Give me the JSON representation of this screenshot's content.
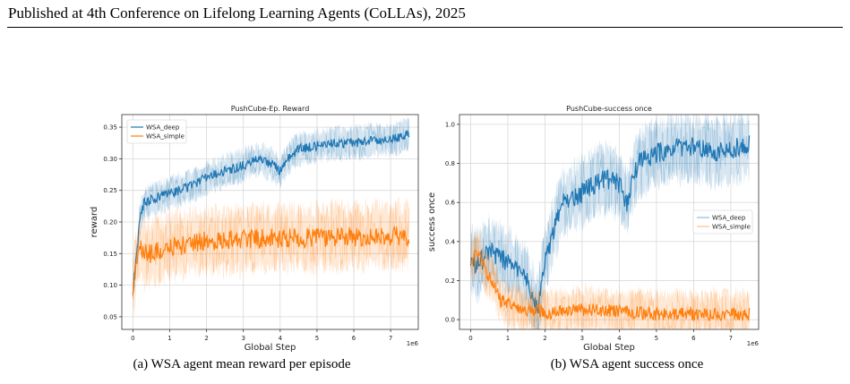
{
  "page": {
    "header": "Published at 4th Conference on Lifelong Learning Agents (CoLLAs), 2025",
    "captions": [
      "(a) WSA agent mean reward per episode",
      "(b) WSA agent success once"
    ]
  },
  "colors": {
    "WSA_deep": "#1f77b4",
    "WSA_simple": "#ff7f0e"
  },
  "chart_data": [
    {
      "type": "line",
      "title": "PushCube-Ep. Reward",
      "xlabel": "Global Step",
      "ylabel": "reward",
      "x_multiplier": "1e6",
      "xlim": [
        -0.3,
        7.75
      ],
      "ylim": [
        0.03,
        0.37
      ],
      "xticks": [
        0,
        1,
        2,
        3,
        4,
        5,
        6,
        7
      ],
      "yticks": [
        0.05,
        0.1,
        0.15,
        0.2,
        0.25,
        0.3,
        0.35
      ],
      "ytick_labels": [
        "0.05",
        "0.10",
        "0.15",
        "0.20",
        "0.25",
        "0.30",
        "0.35"
      ],
      "grid": true,
      "legend_position": "top-left",
      "series": [
        {
          "name": "WSA_deep",
          "x": [
            0.0,
            0.1,
            0.2,
            0.3,
            0.5,
            0.7,
            1.0,
            1.5,
            2.0,
            2.5,
            3.0,
            3.4,
            3.8,
            4.0,
            4.2,
            4.5,
            5.0,
            5.5,
            6.0,
            6.5,
            7.0,
            7.3,
            7.5
          ],
          "y": [
            0.09,
            0.15,
            0.21,
            0.23,
            0.235,
            0.24,
            0.245,
            0.255,
            0.27,
            0.28,
            0.29,
            0.3,
            0.29,
            0.28,
            0.3,
            0.315,
            0.32,
            0.325,
            0.325,
            0.33,
            0.33,
            0.335,
            0.34
          ],
          "band": 0.022
        },
        {
          "name": "WSA_simple",
          "x": [
            0.0,
            0.1,
            0.2,
            0.3,
            0.5,
            0.7,
            1.0,
            1.5,
            2.0,
            3.0,
            4.0,
            5.0,
            6.0,
            7.0,
            7.5
          ],
          "y": [
            0.09,
            0.14,
            0.16,
            0.15,
            0.15,
            0.155,
            0.16,
            0.165,
            0.17,
            0.172,
            0.175,
            0.175,
            0.177,
            0.178,
            0.178
          ],
          "band": 0.045
        }
      ]
    },
    {
      "type": "line",
      "title": "PushCube-success once",
      "xlabel": "Global Step",
      "ylabel": "success once",
      "x_multiplier": "1e6",
      "xlim": [
        -0.3,
        7.75
      ],
      "ylim": [
        -0.05,
        1.05
      ],
      "xticks": [
        0,
        1,
        2,
        3,
        4,
        5,
        6,
        7
      ],
      "yticks": [
        0.0,
        0.2,
        0.4,
        0.6,
        0.8,
        1.0
      ],
      "ytick_labels": [
        "0.0",
        "0.2",
        "0.4",
        "0.6",
        "0.8",
        "1.0"
      ],
      "grid": true,
      "legend_position": "center-right",
      "series": [
        {
          "name": "WSA_deep",
          "x": [
            0.0,
            0.2,
            0.5,
            1.0,
            1.5,
            1.8,
            2.0,
            2.3,
            2.5,
            3.0,
            3.5,
            4.0,
            4.2,
            4.5,
            5.0,
            5.5,
            6.0,
            6.5,
            7.0,
            7.5
          ],
          "y": [
            0.3,
            0.28,
            0.35,
            0.3,
            0.2,
            0.05,
            0.3,
            0.5,
            0.6,
            0.65,
            0.72,
            0.7,
            0.6,
            0.8,
            0.85,
            0.88,
            0.88,
            0.86,
            0.87,
            0.9
          ],
          "band": 0.15
        },
        {
          "name": "WSA_simple",
          "x": [
            0.0,
            0.2,
            0.4,
            0.6,
            0.8,
            1.0,
            1.5,
            2.0,
            2.5,
            3.0,
            4.0,
            5.0,
            6.0,
            7.0,
            7.5
          ],
          "y": [
            0.3,
            0.35,
            0.25,
            0.2,
            0.1,
            0.08,
            0.05,
            0.04,
            0.04,
            0.05,
            0.04,
            0.03,
            0.03,
            0.03,
            0.03
          ],
          "band": 0.1
        }
      ]
    }
  ]
}
